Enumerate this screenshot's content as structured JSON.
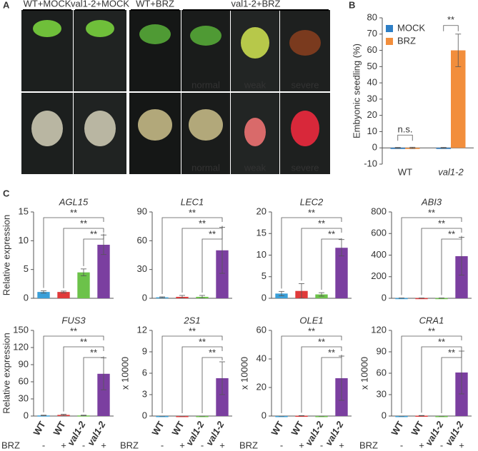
{
  "panel_letters": [
    "A",
    "B",
    "C"
  ],
  "panel_a": {
    "headers": [
      "WT+MOCK",
      "val1-2+MOCK",
      "WT+BRZ",
      "val1-2+BRZ"
    ],
    "photo_labels": [
      "normal",
      "weak",
      "severe",
      "normal",
      "weak",
      "severe"
    ]
  },
  "chart_data": [
    {
      "type": "grouped-bar",
      "ylabel": "Embyonic seedling (%)",
      "categories": [
        "WT",
        "val1-2"
      ],
      "series": [
        {
          "name": "MOCK",
          "color": "#2e7fc6",
          "values": [
            0,
            0
          ],
          "errors": [
            0.3,
            0.3
          ]
        },
        {
          "name": "BRZ",
          "color": "#f28e3c",
          "values": [
            0,
            60
          ],
          "errors": [
            0.4,
            10
          ]
        }
      ],
      "ylim": [
        -10,
        80
      ],
      "yticks": [
        -10,
        0,
        10,
        20,
        30,
        40,
        50,
        60,
        70,
        80
      ],
      "legend": "upper-left",
      "annotations": [
        "n.s.",
        "**"
      ]
    },
    {
      "type": "bar",
      "title": "AGL15",
      "ylabel": "Relative expression",
      "values": [
        1.1,
        1.1,
        4.5,
        9.3
      ],
      "errors": [
        0.2,
        0.15,
        0.6,
        1.7
      ],
      "colors": [
        "#3a9fd8",
        "#e03a3a",
        "#6cc24a",
        "#7b3fa0"
      ],
      "ylim": [
        0,
        15
      ],
      "yticks": [
        0,
        5,
        10,
        15
      ],
      "annotations": [
        "**",
        "**",
        "**"
      ]
    },
    {
      "type": "bar",
      "title": "LEC1",
      "values": [
        1,
        1.5,
        1.5,
        50
      ],
      "errors": [
        0.5,
        1.5,
        1.5,
        24
      ],
      "colors": [
        "#3a9fd8",
        "#e03a3a",
        "#6cc24a",
        "#7b3fa0"
      ],
      "ylim": [
        0,
        90
      ],
      "yticks": [
        0,
        30,
        60,
        90
      ],
      "annotations": [
        "**",
        "**",
        "**"
      ]
    },
    {
      "type": "bar",
      "title": "LEC2",
      "values": [
        1.1,
        1.7,
        0.9,
        11.7
      ],
      "errors": [
        0.5,
        1.7,
        0.4,
        1.9
      ],
      "colors": [
        "#3a9fd8",
        "#e03a3a",
        "#6cc24a",
        "#7b3fa0"
      ],
      "ylim": [
        0,
        20
      ],
      "yticks": [
        0,
        5,
        10,
        15,
        20
      ],
      "annotations": [
        "**",
        "**",
        "**"
      ]
    },
    {
      "type": "bar",
      "title": "ABI3",
      "values": [
        2,
        2,
        2,
        390
      ],
      "errors": [
        1,
        1,
        1,
        175
      ],
      "colors": [
        "#3a9fd8",
        "#e03a3a",
        "#6cc24a",
        "#7b3fa0"
      ],
      "ylim": [
        0,
        800
      ],
      "yticks": [
        0,
        200,
        400,
        600,
        800
      ],
      "annotations": [
        "**",
        "**",
        "**"
      ]
    },
    {
      "type": "bar",
      "title": "FUS3",
      "ylabel": "Relative expression",
      "categories": [
        "WT",
        "WT",
        "val1-2",
        "val1-2"
      ],
      "treatment_label": "BRZ",
      "treatments": [
        "-",
        "+",
        "-",
        "+"
      ],
      "values": [
        1,
        2,
        1,
        74
      ],
      "errors": [
        0.5,
        1,
        0.5,
        28
      ],
      "colors": [
        "#3a9fd8",
        "#e03a3a",
        "#6cc24a",
        "#7b3fa0"
      ],
      "ylim": [
        0,
        150
      ],
      "yticks": [
        0,
        30,
        60,
        90,
        120,
        150
      ],
      "annotations": [
        "**",
        "**",
        "**"
      ]
    },
    {
      "type": "bar",
      "title": "2S1",
      "ylabel": "x 10000",
      "categories": [
        "WT",
        "WT",
        "val1-2",
        "val1-2"
      ],
      "treatment_label": "BRZ",
      "treatments": [
        "-",
        "+",
        "-",
        "+"
      ],
      "values": [
        0,
        0,
        0,
        5.3
      ],
      "errors": [
        0,
        0,
        0,
        2.3
      ],
      "colors": [
        "#3a9fd8",
        "#e03a3a",
        "#6cc24a",
        "#7b3fa0"
      ],
      "ylim": [
        0,
        12
      ],
      "yticks": [
        0,
        3,
        6,
        9,
        12
      ],
      "annotations": [
        "**",
        "**",
        "**"
      ]
    },
    {
      "type": "bar",
      "title": "OLE1",
      "ylabel": "x 10000",
      "categories": [
        "WT",
        "WT",
        "val1-2",
        "val1-2"
      ],
      "treatment_label": "BRZ",
      "treatments": [
        "-",
        "+",
        "-",
        "+"
      ],
      "values": [
        0,
        0.2,
        0,
        26.5
      ],
      "errors": [
        0,
        0.1,
        0,
        15.5
      ],
      "colors": [
        "#3a9fd8",
        "#e03a3a",
        "#6cc24a",
        "#7b3fa0"
      ],
      "ylim": [
        0,
        60
      ],
      "yticks": [
        0,
        20,
        40,
        60
      ],
      "annotations": [
        "**",
        "**",
        "**"
      ]
    },
    {
      "type": "bar",
      "title": "CRA1",
      "ylabel": "x 10000",
      "categories": [
        "WT",
        "WT",
        "val1-2",
        "val1-2"
      ],
      "treatment_label": "BRZ",
      "treatments": [
        "-",
        "+",
        "-",
        "+"
      ],
      "values": [
        0,
        0.5,
        0,
        61
      ],
      "errors": [
        0,
        0.3,
        0,
        30
      ],
      "colors": [
        "#3a9fd8",
        "#e03a3a",
        "#6cc24a",
        "#7b3fa0"
      ],
      "ylim": [
        0,
        120
      ],
      "yticks": [
        0,
        30,
        60,
        90,
        120
      ],
      "annotations": [
        "**",
        "**",
        "**"
      ]
    }
  ]
}
